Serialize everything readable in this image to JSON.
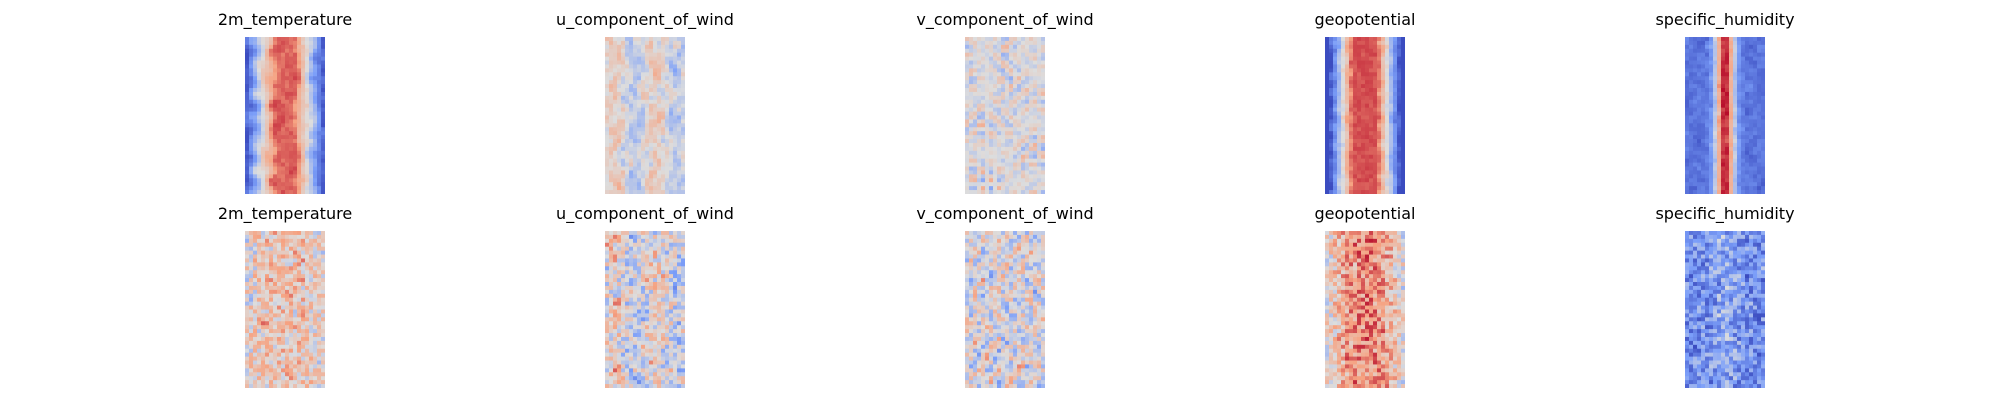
{
  "chart_data": {
    "type": "heatmap",
    "colormap": "coolwarm",
    "grid": false,
    "axes": "off",
    "rows": [
      {
        "panels": [
          {
            "title": "2m_temperature",
            "pattern": "temperature"
          },
          {
            "title": "u_component_of_wind",
            "pattern": "u_wind"
          },
          {
            "title": "v_component_of_wind",
            "pattern": "v_wind"
          },
          {
            "title": "geopotential",
            "pattern": "geopotential"
          },
          {
            "title": "specific_humidity",
            "pattern": "humidity"
          }
        ]
      },
      {
        "panels": [
          {
            "title": "2m_temperature",
            "pattern": "temperature_noisy"
          },
          {
            "title": "u_component_of_wind",
            "pattern": "u_wind_noisy"
          },
          {
            "title": "v_component_of_wind",
            "pattern": "v_wind_noisy"
          },
          {
            "title": "geopotential",
            "pattern": "geopotential_noisy"
          },
          {
            "title": "specific_humidity",
            "pattern": "humidity_noisy"
          }
        ]
      }
    ]
  }
}
